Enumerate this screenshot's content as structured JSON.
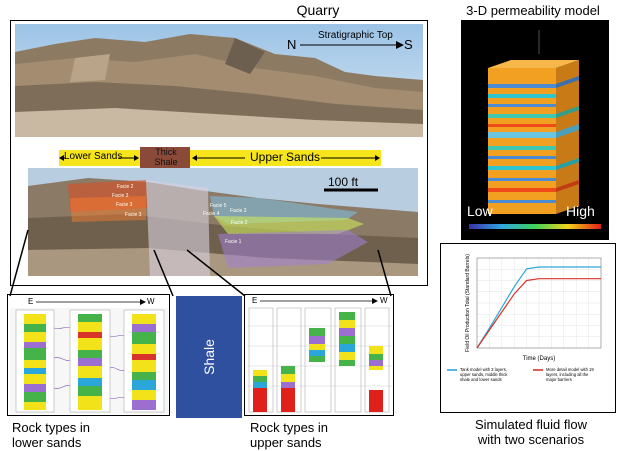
{
  "quarry": {
    "title": "Quarry",
    "compass_n": "N",
    "compass_s": "S",
    "strat_top": "Stratigraphic Top",
    "lower_sands": "Lower Sands",
    "thick_shale_1": "Thick",
    "thick_shale_2": "Shale",
    "upper_sands": "Upper Sands",
    "scale": "100 ft",
    "facies": [
      "Facie 2",
      "Facie 3",
      "Facie 3",
      "Facie 5",
      "Facie 4",
      "Facie 3",
      "Facie 2",
      "Facie 1",
      "Facie 3"
    ]
  },
  "perm": {
    "title": "3-D permeability model",
    "low": "Low",
    "high": "High"
  },
  "lower_logs": {
    "e": "E",
    "w": "W",
    "caption_1": "Rock types in",
    "caption_2": "lower sands"
  },
  "shale": {
    "label": "Shale"
  },
  "upper_logs": {
    "e": "E",
    "w": "W",
    "caption_1": "Rock types in",
    "caption_2": "upper sands"
  },
  "flow": {
    "caption_1": "Simulated fluid flow",
    "caption_2": "with two scenarios"
  },
  "colors": {
    "shale_box": "#2f4f9f",
    "sand_bar": "#f5e51a",
    "shale_bar": "#8a4a3a",
    "blue_curve": "#2aa7d8",
    "red_curve": "#d8352a"
  },
  "chart_data": {
    "type": "line",
    "title": "",
    "xlabel": "Time (Days)",
    "ylabel": "Field Oil Production Total (Standard Barrels)",
    "x": [
      0,
      1,
      2,
      3,
      4,
      5,
      6,
      7,
      8,
      9,
      10
    ],
    "xlim": [
      0,
      10
    ],
    "ylim": [
      0,
      100
    ],
    "grid": true,
    "legend_position": "bottom",
    "series": [
      {
        "name": "Tank model with 3 layers, upper sands, middle thick shale and lower sands",
        "color": "#2aa7d8",
        "values": [
          0,
          22,
          45,
          68,
          88,
          90,
          90,
          90,
          90,
          90,
          90
        ]
      },
      {
        "name": "More detail model with 19 layers, including all the major barriers",
        "color": "#d8352a",
        "values": [
          0,
          20,
          40,
          60,
          75,
          77,
          77,
          77,
          77,
          77,
          77
        ]
      }
    ]
  }
}
